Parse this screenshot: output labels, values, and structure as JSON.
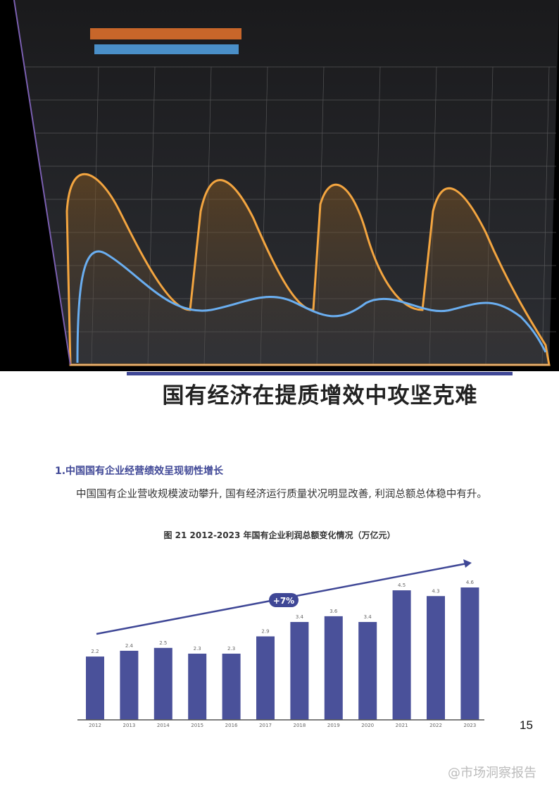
{
  "title": "国有经济在提质增效中攻坚克难",
  "section_heading": "1.中国国有企业经营绩效呈现韧性增长",
  "paragraph": "中国国有企业营收规模波动攀升, 国有经济运行质量状况明显改善, 利润总额总体稳中有升。",
  "figure_title": "图 21   2012-2023 年国有企业利润总额变化情况（万亿元）",
  "page_number": "15",
  "watermark": "@市场洞察报告",
  "colors": {
    "accent": "#3f4796",
    "bar": "#4a519a"
  },
  "chart_data": {
    "type": "bar",
    "categories": [
      "2012",
      "2013",
      "2014",
      "2015",
      "2016",
      "2017",
      "2018",
      "2019",
      "2020",
      "2021",
      "2022",
      "2023"
    ],
    "values": [
      2.2,
      2.4,
      2.5,
      2.3,
      2.3,
      2.9,
      3.4,
      3.6,
      3.4,
      4.5,
      4.3,
      4.6
    ],
    "annotation": "+7%",
    "trend_arrow": true,
    "ylim": [
      0,
      4.6
    ],
    "grid": false
  }
}
